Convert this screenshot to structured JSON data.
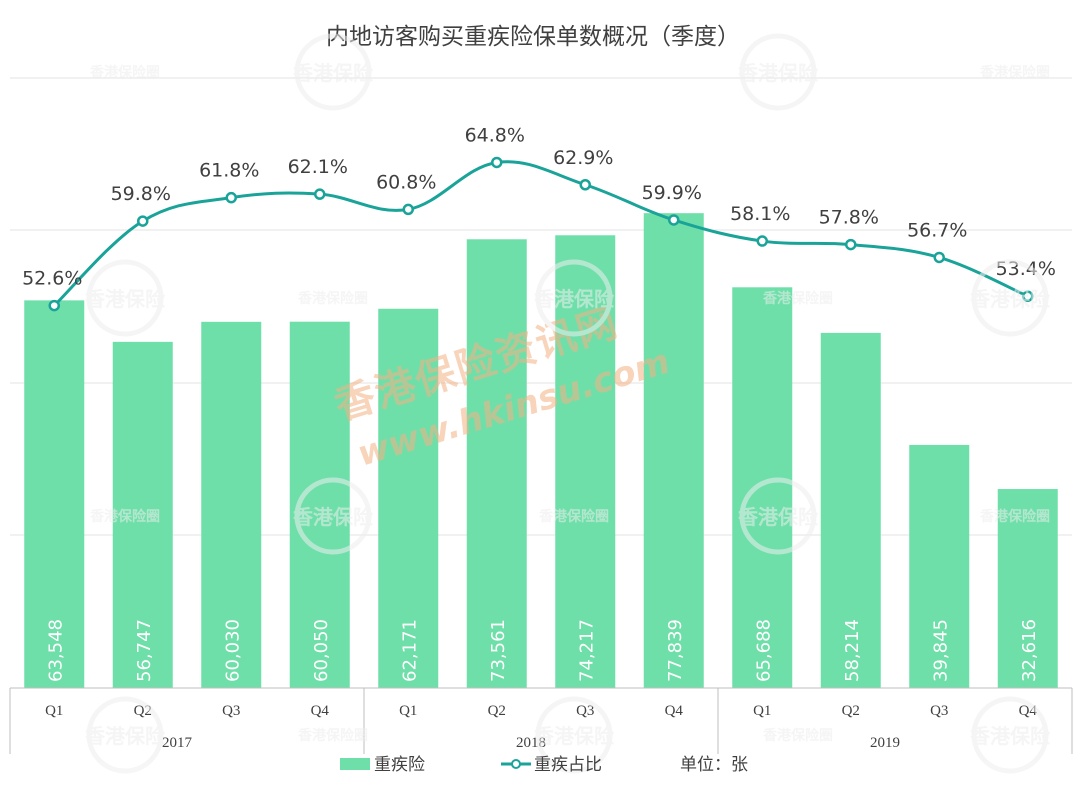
{
  "chart_data": {
    "type": "bar+line",
    "title": "内地访客购买重疾险保单数概况（季度）",
    "categories": [
      "Q1",
      "Q2",
      "Q3",
      "Q4",
      "Q1",
      "Q2",
      "Q3",
      "Q4",
      "Q1",
      "Q2",
      "Q3",
      "Q4"
    ],
    "groups": [
      {
        "label": "2017",
        "span": 4
      },
      {
        "label": "2018",
        "span": 4
      },
      {
        "label": "2019",
        "span": 4
      }
    ],
    "series": [
      {
        "name": "重疾险",
        "kind": "bar",
        "color": "#6fdfa9",
        "values": [
          63548,
          56747,
          60030,
          60050,
          62171,
          73561,
          74217,
          77839,
          65688,
          58214,
          39845,
          32616
        ],
        "labels": [
          "63,548",
          "56,747",
          "60,030",
          "60,050",
          "62,171",
          "73,561",
          "74,217",
          "77,839",
          "65,688",
          "58,214",
          "39,845",
          "32,616"
        ]
      },
      {
        "name": "重疾占比",
        "kind": "line",
        "color": "#1aa398",
        "values": [
          52.6,
          59.8,
          61.8,
          62.1,
          60.8,
          64.8,
          62.9,
          59.9,
          58.1,
          57.8,
          56.7,
          53.4
        ],
        "labels": [
          "52.6%",
          "59.8%",
          "61.8%",
          "62.1%",
          "60.8%",
          "64.8%",
          "62.9%",
          "59.9%",
          "58.1%",
          "57.8%",
          "56.7%",
          "53.4%"
        ]
      }
    ],
    "unit_note": "单位：张",
    "bar_ylim": [
      0,
      100000
    ],
    "line_ylim": [
      20,
      72
    ],
    "grid": true,
    "legend_position": "bottom"
  },
  "watermark": {
    "line1": "香港保险资讯网",
    "line2": "www.hkinsu.com",
    "badge": "香港保险",
    "small": "香港保险圈"
  }
}
